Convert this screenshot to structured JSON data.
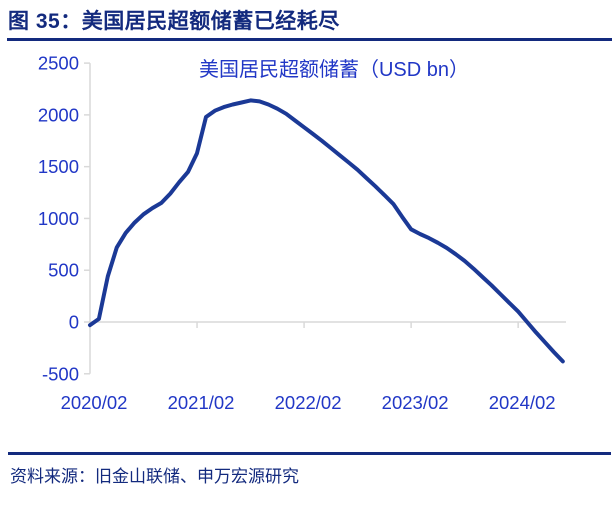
{
  "header": {
    "title": "图 35：美国居民超额储蓄已经耗尽"
  },
  "footer": {
    "source": "资料来源：旧金山联储、申万宏源研究"
  },
  "colors": {
    "header_navy": "#132a7e",
    "rule_navy": "#132a7e",
    "chart_text_blue": "#2137c6",
    "series_line_navy": "#1b3996",
    "axis_gray": "#d9d9d9",
    "background": "#ffffff"
  },
  "chart_data": {
    "type": "line",
    "title": "美国居民超额储蓄（USD bn）",
    "unit": "USD bn",
    "legend_position": "none",
    "grid": "zero-line-only",
    "ylim": [
      -500,
      2500
    ],
    "ytick_step": 500,
    "ytick_labels": [
      "-500",
      "0",
      "500",
      "1000",
      "1500",
      "2000",
      "2500"
    ],
    "xtick_labels": [
      "2020/02",
      "2021/02",
      "2022/02",
      "2023/02",
      "2024/02"
    ],
    "xtick_indices": [
      0,
      12,
      24,
      36,
      48
    ],
    "x": [
      "2020/02",
      "2020/03",
      "2020/04",
      "2020/05",
      "2020/06",
      "2020/07",
      "2020/08",
      "2020/09",
      "2020/10",
      "2020/11",
      "2020/12",
      "2021/01",
      "2021/02",
      "2021/03",
      "2021/04",
      "2021/05",
      "2021/06",
      "2021/07",
      "2021/08",
      "2021/09",
      "2021/10",
      "2021/11",
      "2021/12",
      "2022/01",
      "2022/02",
      "2022/03",
      "2022/04",
      "2022/05",
      "2022/06",
      "2022/07",
      "2022/08",
      "2022/09",
      "2022/10",
      "2022/11",
      "2022/12",
      "2023/01",
      "2023/02",
      "2023/03",
      "2023/04",
      "2023/05",
      "2023/06",
      "2023/07",
      "2023/08",
      "2023/09",
      "2023/10",
      "2023/11",
      "2023/12",
      "2024/01",
      "2024/02",
      "2024/03",
      "2024/04",
      "2024/05",
      "2024/06",
      "2024/07"
    ],
    "values": [
      -30,
      30,
      440,
      720,
      860,
      960,
      1040,
      1100,
      1150,
      1240,
      1350,
      1450,
      1630,
      1980,
      2040,
      2075,
      2100,
      2120,
      2140,
      2130,
      2100,
      2060,
      2010,
      1945,
      1880,
      1815,
      1750,
      1680,
      1610,
      1540,
      1470,
      1390,
      1310,
      1225,
      1140,
      1015,
      895,
      850,
      810,
      765,
      715,
      655,
      590,
      515,
      435,
      355,
      270,
      185,
      100,
      0,
      -100,
      -195,
      -290,
      -380
    ]
  }
}
